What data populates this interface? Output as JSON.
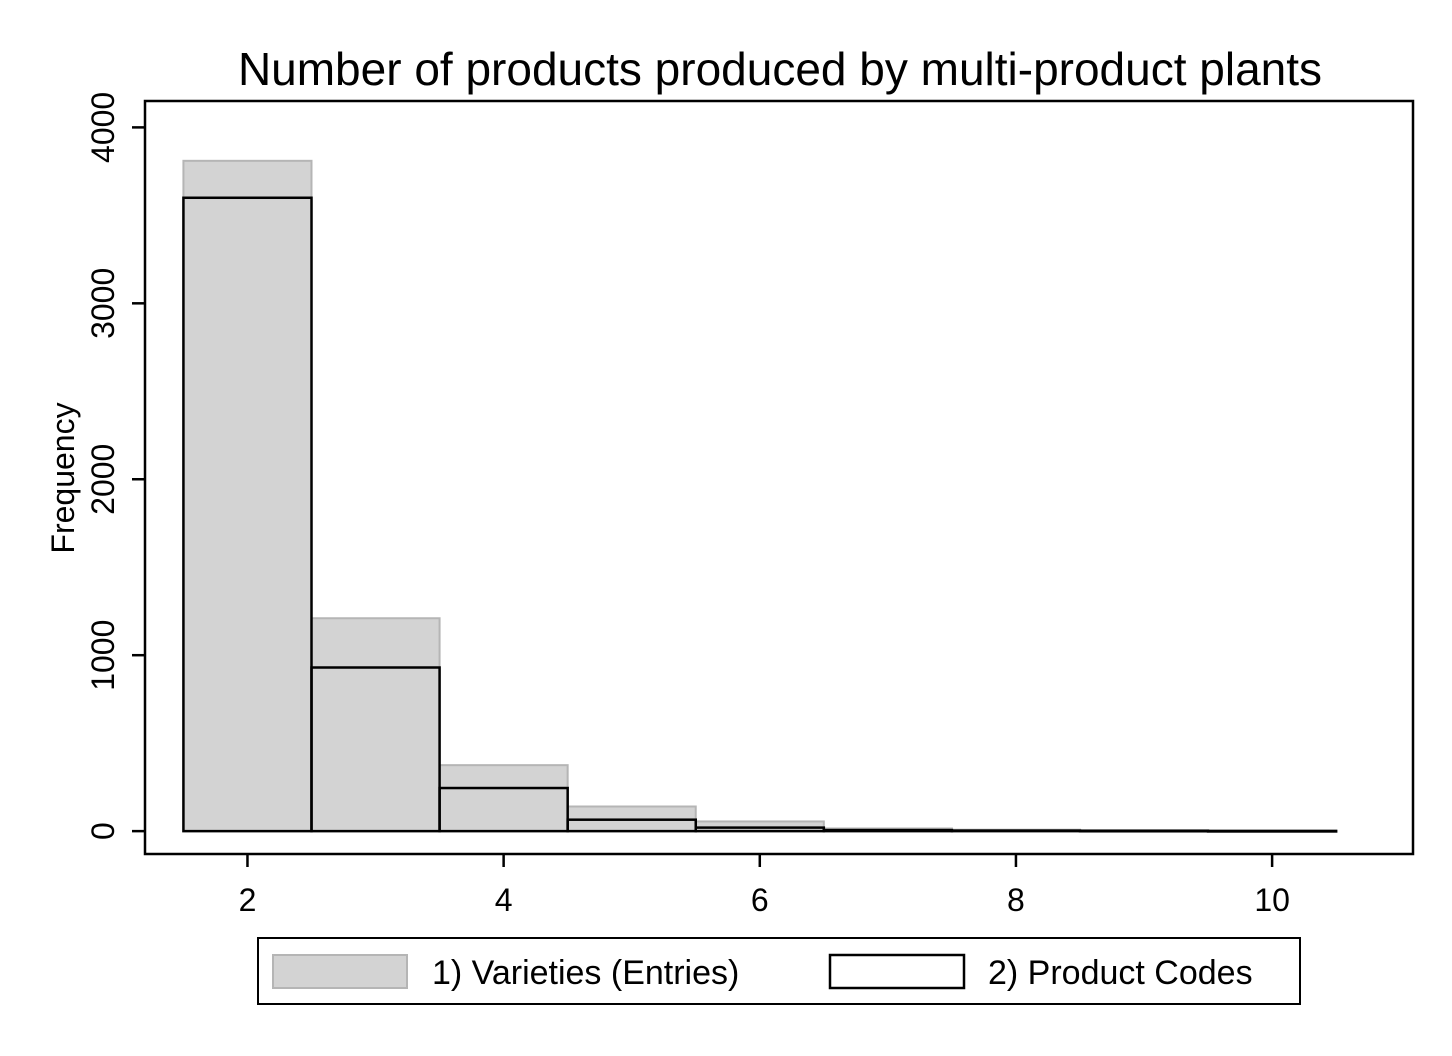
{
  "chart_data": {
    "type": "bar",
    "title": "Number of products produced by multi-product plants",
    "xlabel": "",
    "ylabel": "Frequency",
    "x_ticks": [
      2,
      4,
      6,
      8,
      10
    ],
    "y_ticks": [
      0,
      1000,
      2000,
      3000,
      4000
    ],
    "xlim": [
      1.2,
      11.1
    ],
    "ylim": [
      -130,
      4150
    ],
    "bin_width": 1,
    "categories": [
      2,
      3,
      4,
      5,
      6,
      7,
      8,
      9,
      10
    ],
    "series": [
      {
        "name": "1) Varieties (Entries)",
        "style": "filled",
        "fill": "#d3d3d3",
        "stroke": "#b5b5b5",
        "values": [
          3810,
          1210,
          375,
          140,
          55,
          15,
          8,
          5,
          3
        ]
      },
      {
        "name": "2) Product Codes",
        "style": "outline",
        "fill": "none",
        "stroke": "#000000",
        "values": [
          3600,
          930,
          245,
          65,
          20,
          6,
          3,
          2,
          1
        ]
      }
    ],
    "grid": false,
    "legend_position": "bottom"
  }
}
